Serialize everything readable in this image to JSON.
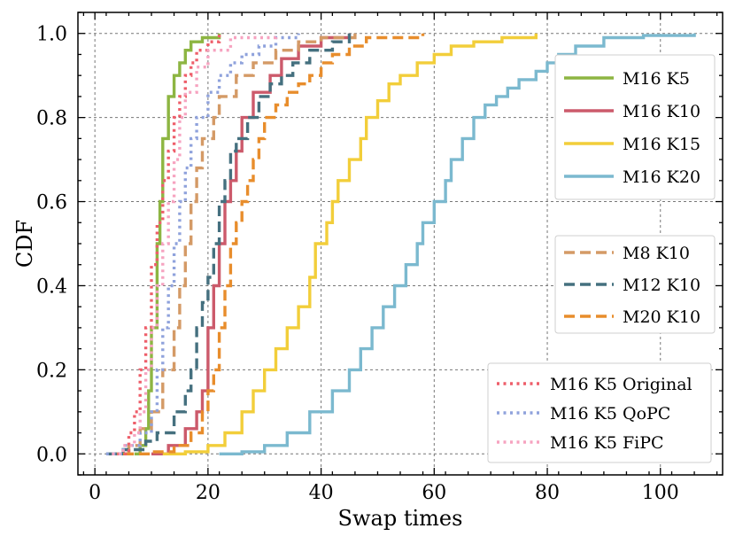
{
  "chart_data": {
    "type": "line",
    "title": "",
    "xlabel": "Swap times",
    "ylabel": "CDF",
    "xlim": [
      -3,
      111
    ],
    "ylim": [
      -0.05,
      1.05
    ],
    "xticks": [
      0,
      20,
      40,
      60,
      80,
      100
    ],
    "yticks": [
      0.0,
      0.2,
      0.4,
      0.6,
      0.8,
      1.0
    ],
    "xtick_labels": [
      "0",
      "20",
      "40",
      "60",
      "80",
      "100"
    ],
    "ytick_labels": [
      "0.0",
      "0.2",
      "0.4",
      "0.6",
      "0.8",
      "1.0"
    ],
    "grid": true,
    "series": [
      {
        "name": "M16 K5",
        "group": 0,
        "color": "#8db542",
        "style": "solid",
        "points": [
          [
            7,
            0
          ],
          [
            8,
            0.02
          ],
          [
            9,
            0.06
          ],
          [
            9.5,
            0.15
          ],
          [
            10,
            0.3
          ],
          [
            11,
            0.5
          ],
          [
            11.5,
            0.6
          ],
          [
            12,
            0.75
          ],
          [
            13,
            0.85
          ],
          [
            14,
            0.9
          ],
          [
            15,
            0.93
          ],
          [
            16,
            0.96
          ],
          [
            17,
            0.98
          ],
          [
            19,
            0.99
          ],
          [
            22,
            1.0
          ]
        ]
      },
      {
        "name": "M16 K10",
        "group": 0,
        "color": "#cc5a6b",
        "style": "solid",
        "points": [
          [
            10,
            0
          ],
          [
            13,
            0.02
          ],
          [
            16,
            0.06
          ],
          [
            18,
            0.1
          ],
          [
            19,
            0.15
          ],
          [
            20,
            0.3
          ],
          [
            21,
            0.4
          ],
          [
            22,
            0.5
          ],
          [
            23,
            0.6
          ],
          [
            24,
            0.65
          ],
          [
            25,
            0.72
          ],
          [
            26,
            0.8
          ],
          [
            28,
            0.86
          ],
          [
            31,
            0.9
          ],
          [
            33,
            0.94
          ],
          [
            36,
            0.97
          ],
          [
            40,
            0.99
          ],
          [
            45,
            1.0
          ]
        ]
      },
      {
        "name": "M16 K15",
        "group": 0,
        "color": "#f2ce3a",
        "style": "solid",
        "points": [
          [
            12,
            0
          ],
          [
            16,
            0.005
          ],
          [
            20,
            0.02
          ],
          [
            23,
            0.05
          ],
          [
            26,
            0.1
          ],
          [
            28,
            0.15
          ],
          [
            30,
            0.2
          ],
          [
            32,
            0.25
          ],
          [
            34,
            0.3
          ],
          [
            36,
            0.35
          ],
          [
            38,
            0.42
          ],
          [
            39,
            0.5
          ],
          [
            41,
            0.55
          ],
          [
            42,
            0.6
          ],
          [
            43,
            0.65
          ],
          [
            45,
            0.7
          ],
          [
            47,
            0.75
          ],
          [
            48,
            0.8
          ],
          [
            50,
            0.84
          ],
          [
            52,
            0.88
          ],
          [
            54,
            0.9
          ],
          [
            57,
            0.93
          ],
          [
            60,
            0.95
          ],
          [
            63,
            0.97
          ],
          [
            67,
            0.98
          ],
          [
            72,
            0.99
          ],
          [
            78,
            1.0
          ]
        ]
      },
      {
        "name": "M16 K20",
        "group": 0,
        "color": "#7bb9cf",
        "style": "solid",
        "points": [
          [
            22,
            0
          ],
          [
            26,
            0.005
          ],
          [
            30,
            0.02
          ],
          [
            34,
            0.05
          ],
          [
            38,
            0.1
          ],
          [
            42,
            0.15
          ],
          [
            45,
            0.2
          ],
          [
            47,
            0.25
          ],
          [
            49,
            0.3
          ],
          [
            51,
            0.35
          ],
          [
            53,
            0.4
          ],
          [
            55,
            0.45
          ],
          [
            57,
            0.5
          ],
          [
            58,
            0.55
          ],
          [
            60,
            0.6
          ],
          [
            62,
            0.65
          ],
          [
            63,
            0.7
          ],
          [
            65,
            0.75
          ],
          [
            67,
            0.8
          ],
          [
            69,
            0.83
          ],
          [
            71,
            0.85
          ],
          [
            73,
            0.87
          ],
          [
            75,
            0.89
          ],
          [
            78,
            0.91
          ],
          [
            80,
            0.93
          ],
          [
            82,
            0.95
          ],
          [
            85,
            0.97
          ],
          [
            90,
            0.99
          ],
          [
            97,
            0.995
          ],
          [
            106,
            1.0
          ]
        ]
      },
      {
        "name": "M8 K10",
        "group": 1,
        "color": "#d49a66",
        "style": "dashed",
        "points": [
          [
            3,
            0
          ],
          [
            6,
            0.02
          ],
          [
            8,
            0.06
          ],
          [
            10,
            0.1
          ],
          [
            12,
            0.2
          ],
          [
            14,
            0.3
          ],
          [
            15,
            0.4
          ],
          [
            16,
            0.5
          ],
          [
            17,
            0.6
          ],
          [
            18,
            0.68
          ],
          [
            19,
            0.75
          ],
          [
            21,
            0.8
          ],
          [
            22,
            0.85
          ],
          [
            25,
            0.9
          ],
          [
            28,
            0.93
          ],
          [
            32,
            0.96
          ],
          [
            36,
            0.98
          ],
          [
            40,
            0.99
          ],
          [
            46,
            1.0
          ]
        ]
      },
      {
        "name": "M12 K10",
        "group": 1,
        "color": "#45707f",
        "style": "dashed",
        "points": [
          [
            2,
            0
          ],
          [
            5,
            0.01
          ],
          [
            9,
            0.03
          ],
          [
            11,
            0.05
          ],
          [
            14,
            0.1
          ],
          [
            16,
            0.15
          ],
          [
            17,
            0.2
          ],
          [
            18,
            0.3
          ],
          [
            19,
            0.36
          ],
          [
            20,
            0.42
          ],
          [
            21,
            0.5
          ],
          [
            22,
            0.6
          ],
          [
            23,
            0.65
          ],
          [
            24,
            0.72
          ],
          [
            25,
            0.75
          ],
          [
            27,
            0.8
          ],
          [
            29,
            0.85
          ],
          [
            31,
            0.88
          ],
          [
            33,
            0.9
          ],
          [
            35,
            0.93
          ],
          [
            38,
            0.96
          ],
          [
            42,
            0.98
          ],
          [
            45,
            1.0
          ]
        ]
      },
      {
        "name": "M20 K10",
        "group": 1,
        "color": "#e88d2c",
        "style": "dashed",
        "points": [
          [
            5,
            0
          ],
          [
            10,
            0.005
          ],
          [
            14,
            0.02
          ],
          [
            17,
            0.05
          ],
          [
            19,
            0.1
          ],
          [
            20,
            0.15
          ],
          [
            21,
            0.2
          ],
          [
            22,
            0.3
          ],
          [
            23,
            0.4
          ],
          [
            24,
            0.5
          ],
          [
            25,
            0.55
          ],
          [
            26,
            0.6
          ],
          [
            27,
            0.65
          ],
          [
            28,
            0.7
          ],
          [
            29,
            0.75
          ],
          [
            30,
            0.8
          ],
          [
            32,
            0.83
          ],
          [
            34,
            0.86
          ],
          [
            36,
            0.88
          ],
          [
            38,
            0.9
          ],
          [
            40,
            0.93
          ],
          [
            42,
            0.95
          ],
          [
            45,
            0.97
          ],
          [
            48,
            0.99
          ],
          [
            58,
            1.0
          ]
        ]
      },
      {
        "name": "M16 K5 Original",
        "group": 2,
        "color": "#ee5e6a",
        "style": "dotted",
        "points": [
          [
            4,
            0
          ],
          [
            6,
            0.05
          ],
          [
            7,
            0.1
          ],
          [
            8,
            0.2
          ],
          [
            9,
            0.3
          ],
          [
            10,
            0.45
          ],
          [
            11,
            0.55
          ],
          [
            12,
            0.65
          ],
          [
            13,
            0.72
          ],
          [
            14,
            0.8
          ],
          [
            15,
            0.85
          ],
          [
            16,
            0.9
          ],
          [
            17,
            0.93
          ],
          [
            18,
            0.96
          ],
          [
            20,
            0.98
          ],
          [
            22,
            1.0
          ]
        ]
      },
      {
        "name": "M16 K5 QoPC",
        "group": 2,
        "color": "#8fa2dc",
        "style": "dotted",
        "points": [
          [
            2,
            0
          ],
          [
            5,
            0.02
          ],
          [
            8,
            0.05
          ],
          [
            10,
            0.1
          ],
          [
            11,
            0.2
          ],
          [
            12,
            0.3
          ],
          [
            13,
            0.4
          ],
          [
            14,
            0.5
          ],
          [
            15,
            0.6
          ],
          [
            16,
            0.68
          ],
          [
            17,
            0.75
          ],
          [
            18,
            0.8
          ],
          [
            20,
            0.86
          ],
          [
            22,
            0.9
          ],
          [
            24,
            0.93
          ],
          [
            26,
            0.95
          ],
          [
            29,
            0.97
          ],
          [
            32,
            0.99
          ],
          [
            36,
            1.0
          ]
        ]
      },
      {
        "name": "M16 K5 FiPC",
        "group": 2,
        "color": "#f6a3c0",
        "style": "dotted",
        "points": [
          [
            3,
            0
          ],
          [
            5,
            0.02
          ],
          [
            7,
            0.05
          ],
          [
            8,
            0.1
          ],
          [
            9,
            0.2
          ],
          [
            10,
            0.3
          ],
          [
            11,
            0.4
          ],
          [
            12,
            0.5
          ],
          [
            13,
            0.6
          ],
          [
            14,
            0.7
          ],
          [
            15,
            0.8
          ],
          [
            16,
            0.86
          ],
          [
            18,
            0.92
          ],
          [
            20,
            0.96
          ],
          [
            24,
            0.99
          ],
          [
            32,
            1.0
          ]
        ]
      }
    ]
  }
}
